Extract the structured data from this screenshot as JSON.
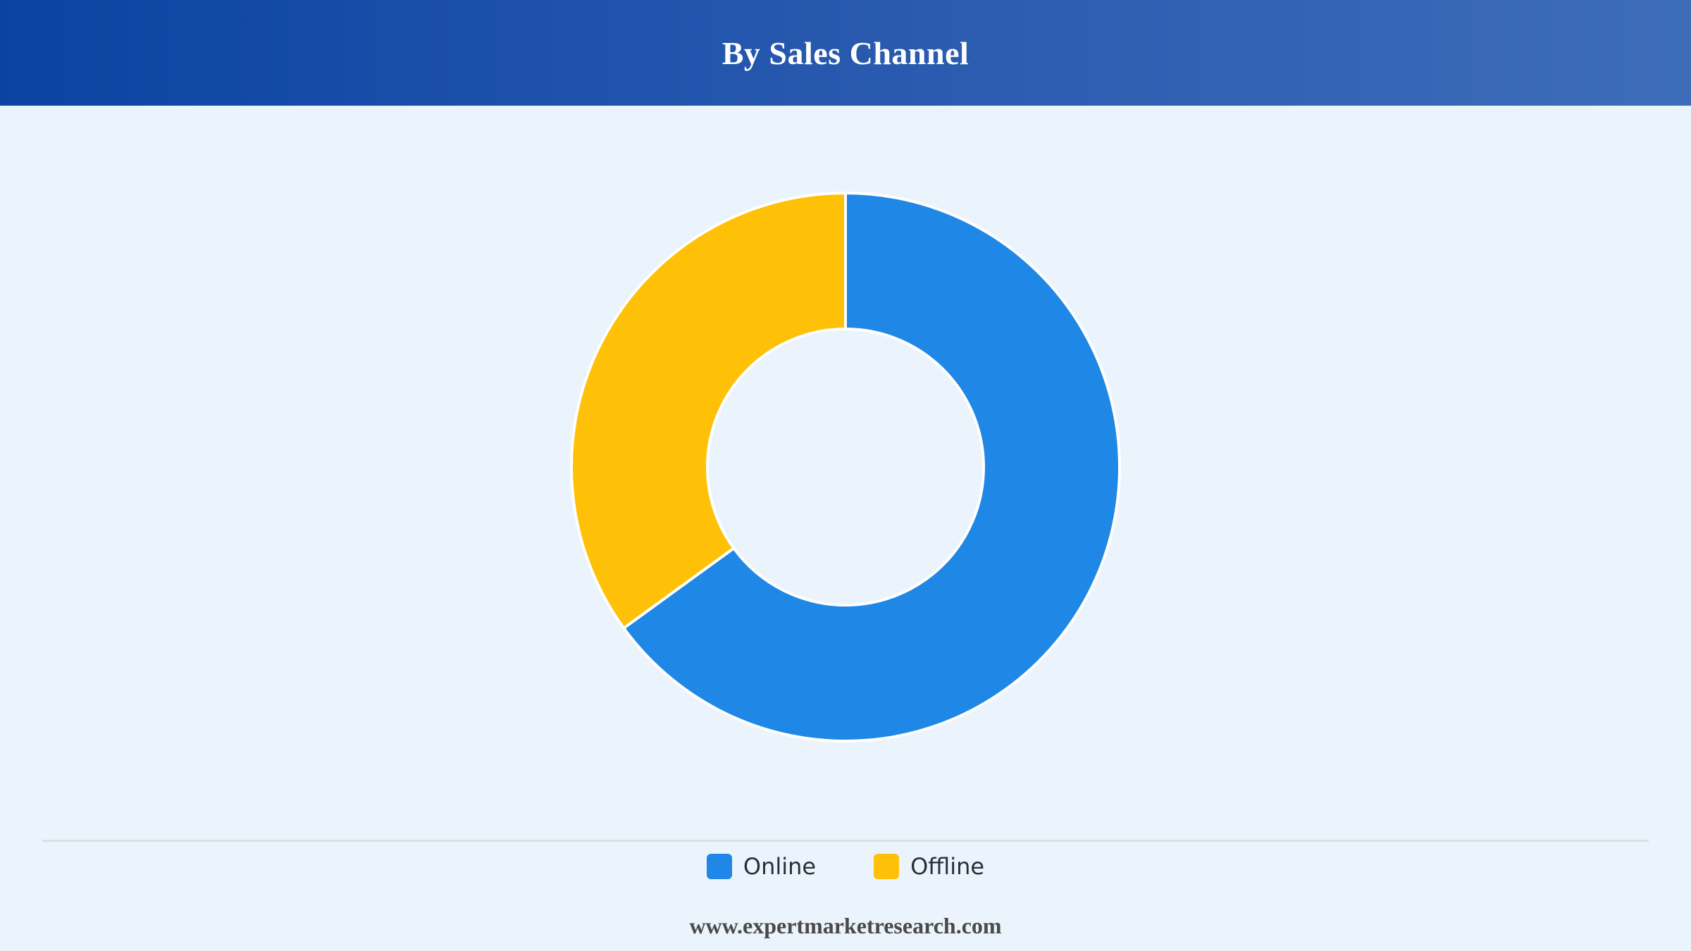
{
  "header": {
    "title": "By Sales Channel"
  },
  "chart_data": {
    "type": "pie",
    "donut": true,
    "title": "By Sales Channel",
    "categories": [
      "Online",
      "Offline"
    ],
    "values": [
      65,
      35
    ],
    "colors": [
      "#1f87e5",
      "#ffc107"
    ],
    "legend_position": "bottom-center"
  },
  "legend": {
    "items": [
      {
        "label": "Online",
        "color": "#1f87e5"
      },
      {
        "label": "Offline",
        "color": "#ffc107"
      }
    ]
  },
  "footer": {
    "source": "www.expertmarketresearch.com"
  }
}
